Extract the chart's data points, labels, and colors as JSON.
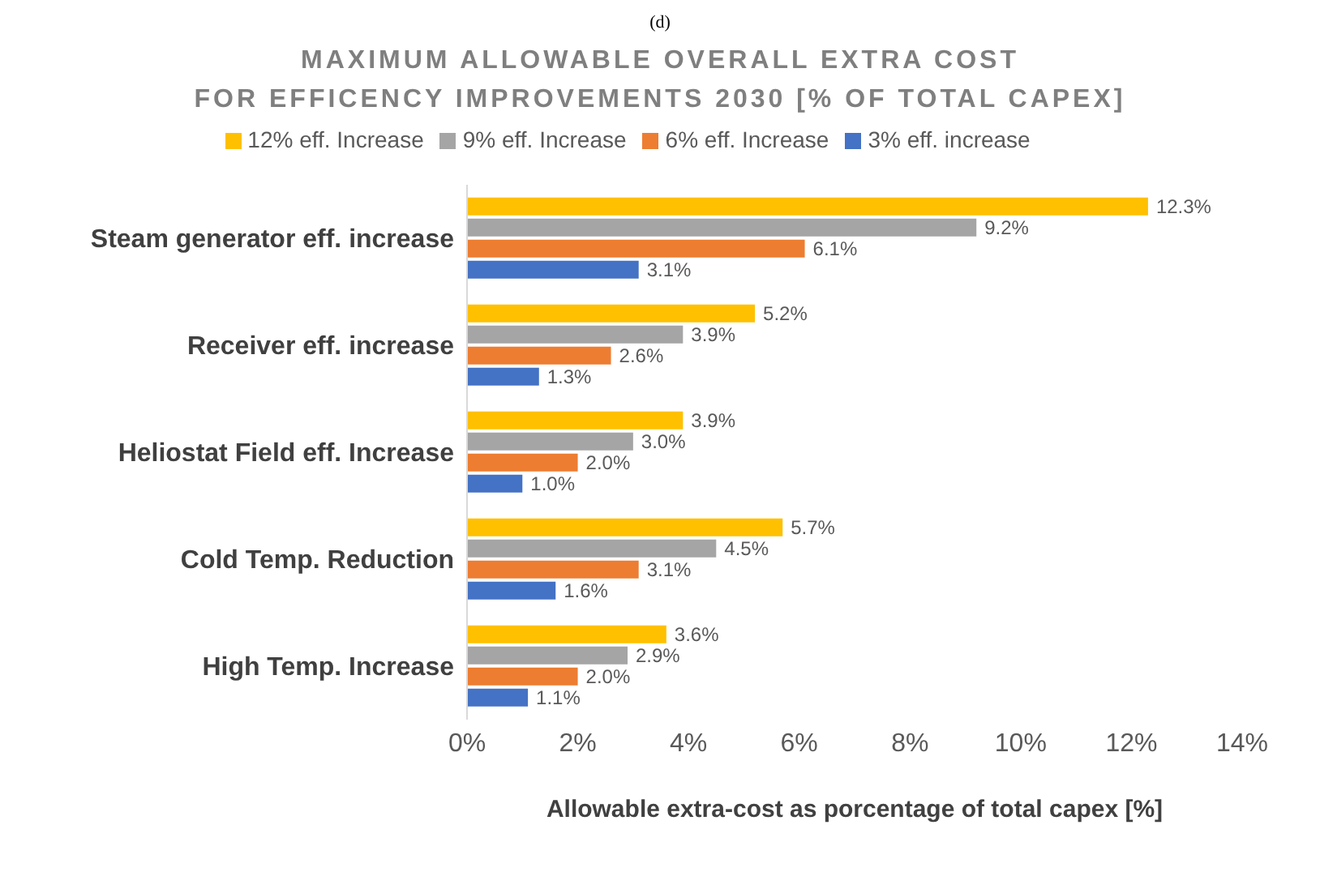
{
  "chart_data": {
    "type": "bar",
    "orientation": "horizontal",
    "title": "MAXIMUM ALLOWABLE OVERALL EXTRA COST\nFOR EFFICENCY IMPROVEMENTS 2030 [% OF TOTAL CAPEX]",
    "annotations": [
      "(d)"
    ],
    "xlabel": "Allowable extra-cost as porcentage of total capex [%]",
    "categories": [
      "Steam generator eff. increase",
      "Receiver eff. increase",
      "Heliostat Field eff. Increase",
      "Cold Temp. Reduction",
      "High Temp. Increase"
    ],
    "series": [
      {
        "name": "12% eff. Increase",
        "color": "#ffc000",
        "values": [
          12.3,
          5.2,
          3.9,
          5.7,
          3.6
        ],
        "value_labels": [
          "12.3%",
          "5.2%",
          "3.9%",
          "5.7%",
          "3.6%"
        ]
      },
      {
        "name": "9% eff. Increase",
        "color": "#a5a5a5",
        "values": [
          9.2,
          3.9,
          3.0,
          4.5,
          2.9
        ],
        "value_labels": [
          "9.2%",
          "3.9%",
          "3.0%",
          "4.5%",
          "2.9%"
        ]
      },
      {
        "name": "6% eff. Increase",
        "color": "#ed7d31",
        "values": [
          6.1,
          2.6,
          2.0,
          3.1,
          2.0
        ],
        "value_labels": [
          "6.1%",
          "2.6%",
          "2.0%",
          "3.1%",
          "2.0%"
        ]
      },
      {
        "name": "3% eff. increase",
        "color": "#4472c4",
        "values": [
          3.1,
          1.3,
          1.0,
          1.6,
          1.1
        ],
        "value_labels": [
          "3.1%",
          "1.3%",
          "1.0%",
          "1.6%",
          "1.1%"
        ]
      }
    ],
    "xlim": [
      0,
      14
    ],
    "xticks": [
      {
        "value": 0,
        "label": "0%"
      },
      {
        "value": 2,
        "label": "2%"
      },
      {
        "value": 4,
        "label": "4%"
      },
      {
        "value": 6,
        "label": "6%"
      },
      {
        "value": 8,
        "label": "8%"
      },
      {
        "value": 10,
        "label": "10%"
      },
      {
        "value": 12,
        "label": "12%"
      },
      {
        "value": 14,
        "label": "14%"
      }
    ],
    "grid": false,
    "legend": "top"
  }
}
